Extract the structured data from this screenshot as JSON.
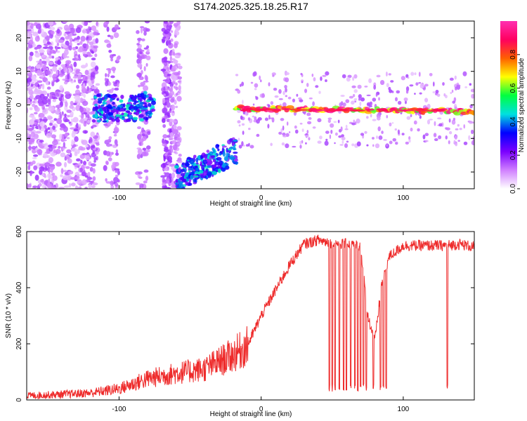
{
  "title": "S174.2025.325.18.25.R17",
  "chart_data": [
    {
      "type": "heatmap",
      "name": "spectrogram",
      "xlabel": "Height of straight line (km)",
      "ylabel": "Frequency (Hz)",
      "xlim": [
        -165,
        150
      ],
      "ylim": [
        -25,
        25
      ],
      "x_ticks": [
        -100,
        0,
        100
      ],
      "y_ticks": [
        20,
        10,
        0,
        -10,
        -20
      ],
      "x_tick_labels": [
        "-100",
        "0",
        "100"
      ],
      "y_tick_labels": [
        "20",
        "10",
        "0",
        "-10",
        "-20"
      ],
      "colorbar": {
        "label": "Normalized spectral amplitude",
        "range": [
          0,
          1
        ],
        "ticks": [
          0.0,
          0.2,
          0.4,
          0.6,
          0.8
        ],
        "tick_labels": [
          "0.0",
          "0.2",
          "0.4",
          "0.6",
          "0.8"
        ],
        "colors": [
          "#ffffff",
          "#d080ff",
          "#7a00ff",
          "#0000ff",
          "#00e0e0",
          "#00ff40",
          "#ffff00",
          "#ff6000",
          "#ff0060",
          "#ff2fb0"
        ]
      },
      "features": [
        {
          "description_x_range": [
            -165,
            -120
          ],
          "freq_range": [
            -25,
            25
          ],
          "amplitude": 0.1
        },
        {
          "description_x_range": [
            -118,
            -75
          ],
          "freq_center": -1,
          "amplitude": 0.35
        },
        {
          "description_x_range": [
            -60,
            -17
          ],
          "freq_center": -15,
          "amplitude": 0.4
        },
        {
          "description_x_range": [
            -18,
            150
          ],
          "freq_center": -1.5,
          "amplitude": 0.9
        }
      ]
    },
    {
      "type": "line",
      "name": "snr",
      "xlabel": "Height of straight line (km)",
      "ylabel": "SNR (10 * v/v)",
      "xlim": [
        -165,
        150
      ],
      "ylim": [
        0,
        600
      ],
      "x_ticks": [
        -100,
        0,
        100
      ],
      "y_ticks": [
        0,
        200,
        400,
        600
      ],
      "x_tick_labels": [
        "-100",
        "0",
        "100"
      ],
      "y_tick_labels": [
        "0",
        "200",
        "400",
        "600"
      ],
      "color": "#ee2a2a",
      "series": [
        {
          "name": "SNR",
          "x": [
            -165,
            -140,
            -120,
            -100,
            -80,
            -60,
            -40,
            -20,
            -10,
            0,
            10,
            20,
            30,
            40,
            50,
            60,
            70,
            75,
            80,
            85,
            90,
            100,
            110,
            120,
            130,
            140,
            150
          ],
          "values": [
            15,
            20,
            25,
            40,
            75,
            95,
            110,
            160,
            190,
            300,
            390,
            480,
            555,
            570,
            560,
            555,
            550,
            300,
            210,
            420,
            510,
            550,
            550,
            550,
            550,
            555,
            545
          ]
        }
      ],
      "dropouts_x": [
        48,
        50,
        52,
        55,
        58,
        60,
        63,
        66,
        68,
        70,
        72,
        74,
        79,
        84,
        86,
        88,
        131
      ]
    }
  ]
}
